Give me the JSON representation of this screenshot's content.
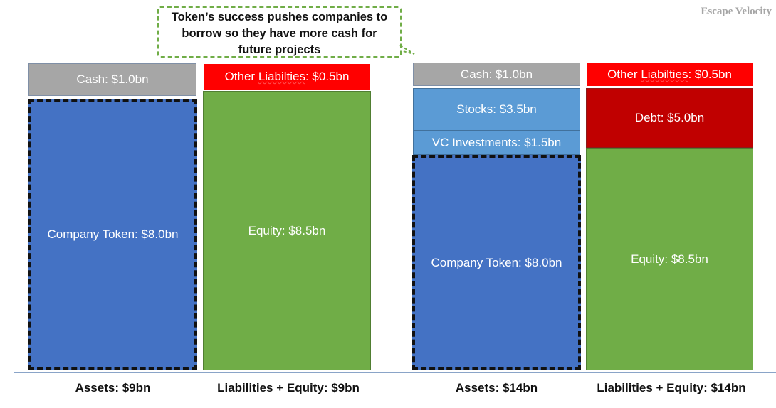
{
  "watermark": "Escape Velocity",
  "callout": {
    "lines": [
      "Token’s success pushes companies to",
      "borrow so they have more cash for",
      "future projects"
    ]
  },
  "before": {
    "assets": {
      "cash": "Cash: $1.0bn",
      "token": "Company Token: $8.0bn",
      "caption": "Assets: $9bn"
    },
    "liabilities": {
      "other_prefix": "Other ",
      "other_word": "Liabilties",
      "other_value": ": $0.5bn",
      "equity": "Equity: $8.5bn",
      "caption": "Liabilities + Equity: $9bn"
    }
  },
  "after": {
    "assets": {
      "cash": "Cash: $1.0bn",
      "stocks": "Stocks: $3.5bn",
      "vc": "VC Investments: $1.5bn",
      "token": "Company Token: $8.0bn",
      "caption": "Assets: $14bn"
    },
    "liabilities": {
      "other_prefix": "Other ",
      "other_word": "Liabilties",
      "other_value": ": $0.5bn",
      "debt": "Debt: $5.0bn",
      "equity": "Equity: $8.5bn",
      "caption": "Liabilities + Equity: $14bn"
    }
  },
  "colors": {
    "cash": "#a6a6a6",
    "other_liabilities": "#ff0000",
    "debt": "#c00000",
    "equity": "#70ad47",
    "token": "#4472c4",
    "stocks": "#5b9bd5",
    "callout_border": "#70ad47"
  }
}
